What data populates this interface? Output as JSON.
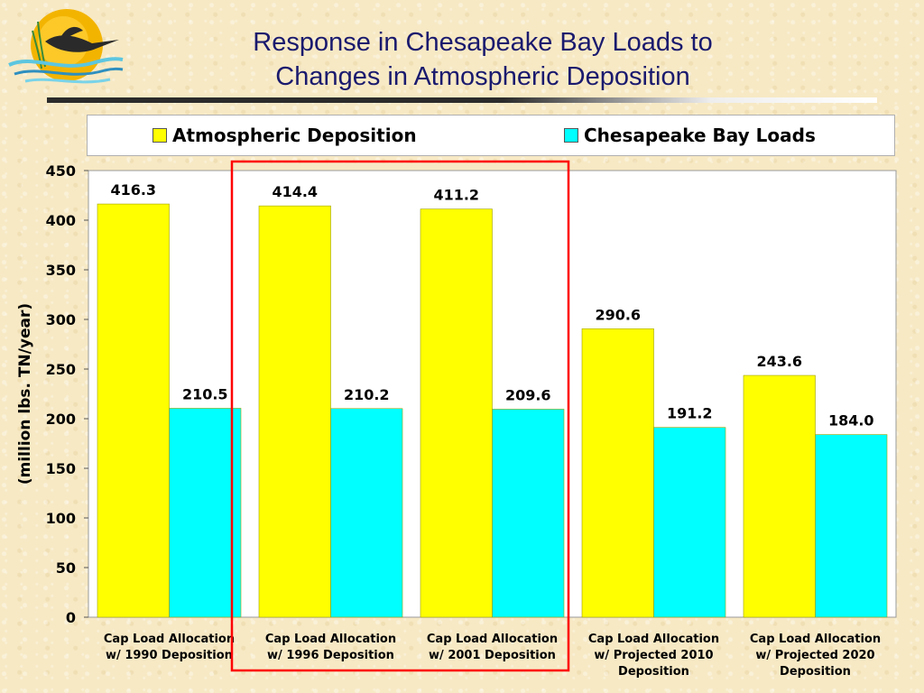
{
  "title": {
    "line1": "Response in Chesapeake Bay Loads to",
    "line2": "Changes in Atmospheric Deposition"
  },
  "colors": {
    "atmospheric": "#ffff00",
    "bay_loads": "#00ffff",
    "highlight_box": "#ff0000",
    "title_text": "#1a1a6e"
  },
  "chart_data": {
    "type": "bar",
    "categories": [
      [
        "Cap Load Allocation",
        "w/ 1990 Deposition"
      ],
      [
        "Cap Load Allocation",
        "w/ 1996 Deposition"
      ],
      [
        "Cap Load Allocation",
        "w/ 2001 Deposition"
      ],
      [
        "Cap Load Allocation",
        "w/ Projected 2010",
        "Deposition"
      ],
      [
        "Cap Load Allocation",
        "w/ Projected 2020",
        "Deposition"
      ]
    ],
    "series": [
      {
        "name": "Atmospheric Deposition",
        "color": "#ffff00",
        "values": [
          416.3,
          414.4,
          411.2,
          290.6,
          243.6
        ],
        "labels": [
          "416.3",
          "414.4",
          "411.2",
          "290.6",
          "243.6"
        ]
      },
      {
        "name": "Chesapeake Bay Loads",
        "color": "#00ffff",
        "values": [
          210.5,
          210.2,
          209.6,
          191.2,
          184.0
        ],
        "labels": [
          "210.5",
          "210.2",
          "209.6",
          "191.2",
          "184.0"
        ]
      }
    ],
    "ylabel": "(million lbs. TN/year)",
    "xlabel": "",
    "ylim": [
      0,
      450
    ],
    "yticks": [
      0,
      50,
      100,
      150,
      200,
      250,
      300,
      350,
      400,
      450
    ],
    "grid": false,
    "legend": "top",
    "highlight": {
      "categories": [
        1,
        2
      ],
      "color": "#ff0000"
    }
  }
}
